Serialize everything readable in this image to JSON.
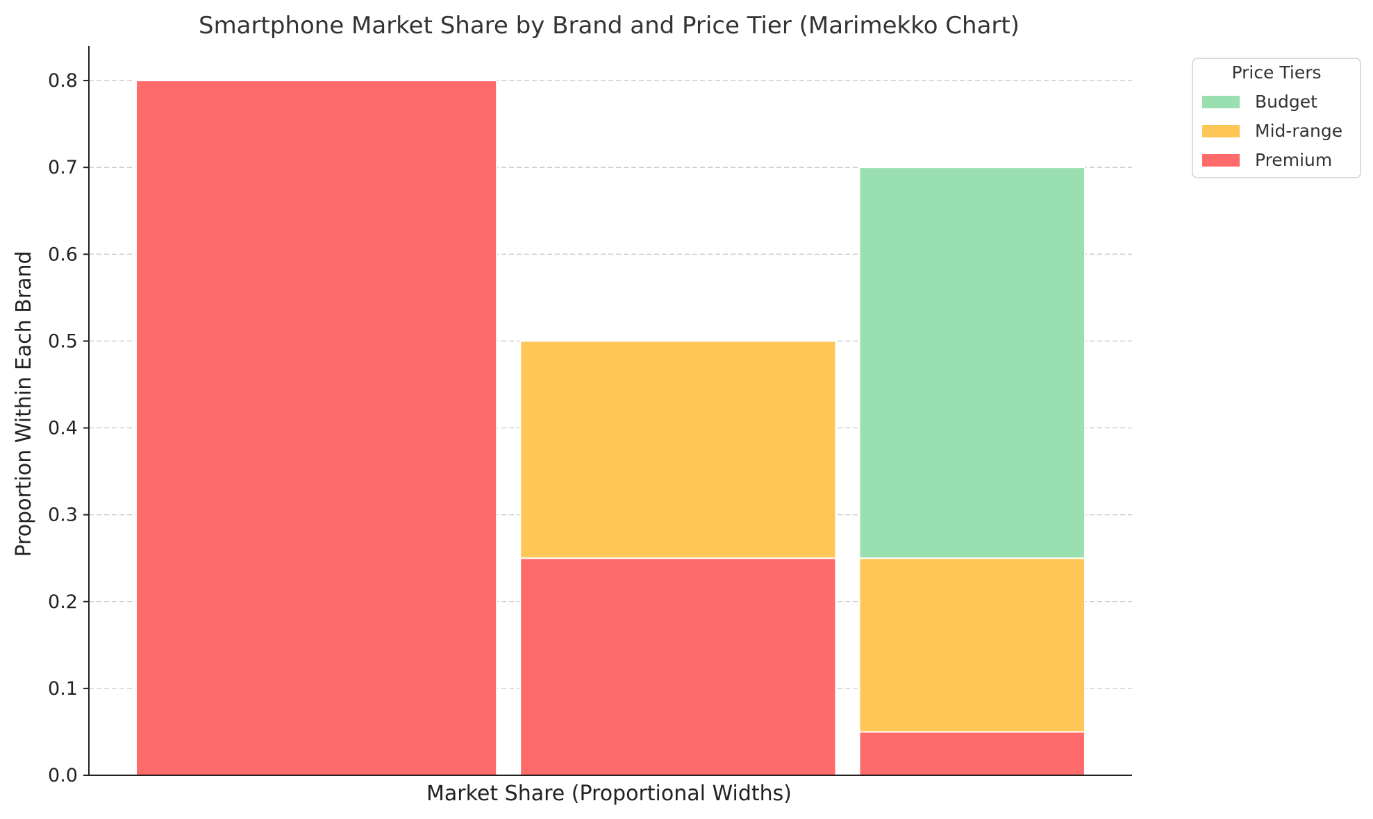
{
  "chart_data": {
    "type": "bar",
    "subtype": "marimekko",
    "title": "Smartphone Market Share by Brand and Price Tier (Marimekko Chart)",
    "xlabel": "Market Share (Proportional Widths)",
    "ylabel": "Proportion Within Each Brand",
    "ylim": [
      0,
      0.84
    ],
    "yticks": [
      0.0,
      0.1,
      0.2,
      0.3,
      0.4,
      0.5,
      0.6,
      0.7,
      0.8
    ],
    "ytick_labels": [
      "0.0",
      "0.1",
      "0.2",
      "0.3",
      "0.4",
      "0.5",
      "0.6",
      "0.7",
      "0.8"
    ],
    "grid": true,
    "legend": {
      "title": "Price Tiers",
      "placement": "outside-top-right",
      "entries": [
        "Budget",
        "Mid-range",
        "Premium"
      ]
    },
    "columns": [
      {
        "width": 0.4,
        "segments": {
          "Premium": 0.8,
          "Mid-range": 0.0,
          "Budget": 0.0
        }
      },
      {
        "width": 0.35,
        "segments": {
          "Premium": 0.25,
          "Mid-range": 0.25,
          "Budget": 0.0
        }
      },
      {
        "width": 0.25,
        "segments": {
          "Premium": 0.05,
          "Mid-range": 0.2,
          "Budget": 0.45
        }
      }
    ],
    "stack_order": [
      "Premium",
      "Mid-range",
      "Budget"
    ],
    "colors": {
      "Budget": "#99dfb0",
      "Mid-range": "#fec657",
      "Premium": "#ff6b6b"
    }
  }
}
